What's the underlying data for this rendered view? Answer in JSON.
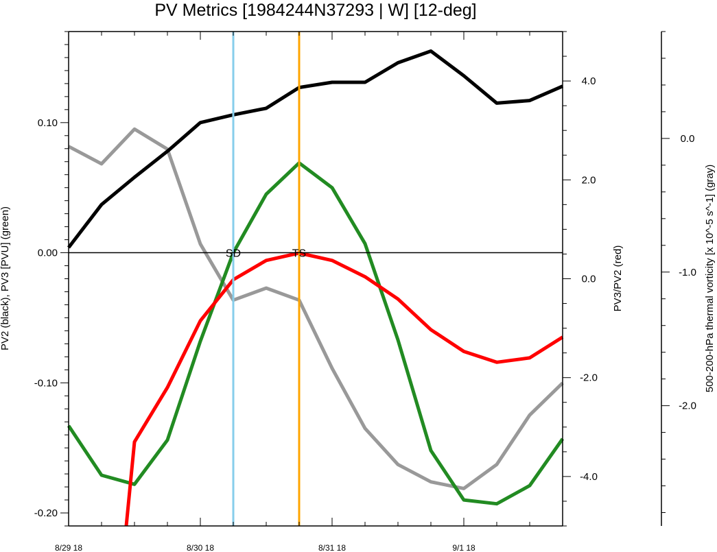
{
  "chart_data": {
    "type": "line",
    "title": "PV Metrics [1984244N37293 | W] [12-deg]",
    "x_tick_labels": [
      "8/29 18",
      "8/30 18",
      "8/31 18",
      "9/1 18"
    ],
    "x_tick_positions": [
      0,
      4,
      8,
      12
    ],
    "xlim": [
      0,
      15
    ],
    "axes": {
      "left": {
        "label": "PV2 (black), PV3 [PVU] (green)",
        "ylim": [
          -0.21,
          0.17
        ],
        "tick_values": [
          -0.2,
          -0.1,
          0.0,
          0.1
        ],
        "tick_labels": [
          "-0.20",
          "-0.10",
          "0.00",
          "0.10"
        ]
      },
      "right": {
        "label": "PV3/PV2 (red)",
        "ylim": [
          -5.0,
          5.0
        ],
        "tick_values": [
          -4.0,
          -2.0,
          0.0,
          2.0,
          4.0
        ],
        "tick_labels": [
          "-4.0",
          "-2.0",
          "0.0",
          "2.0",
          "4.0"
        ]
      },
      "far_right": {
        "label": "500-200-hPa thermal vorticity [x 10^-5 s^-1] (gray)",
        "ylim": [
          -2.9,
          0.8
        ],
        "tick_values": [
          -2.0,
          -1.0,
          0.0
        ],
        "tick_labels": [
          "-2.0",
          "-1.0",
          "0.0"
        ]
      }
    },
    "series": [
      {
        "axis": "left",
        "color": "#000000",
        "x": [
          0,
          1,
          2,
          3,
          4,
          5,
          6,
          7,
          8,
          9,
          10,
          11,
          12,
          13,
          14,
          15
        ],
        "values": [
          0.004,
          0.037,
          0.058,
          0.078,
          0.1,
          0.106,
          0.111,
          0.127,
          0.131,
          0.131,
          0.146,
          0.155,
          0.136,
          0.115,
          0.117,
          0.128
        ]
      },
      {
        "axis": "left",
        "color": "#228b22",
        "x": [
          0,
          1,
          2,
          3,
          4,
          5,
          6,
          7,
          8,
          9,
          10,
          11,
          12,
          13,
          14,
          15
        ],
        "values": [
          -0.133,
          -0.171,
          -0.178,
          -0.144,
          -0.068,
          0.0,
          0.045,
          0.069,
          0.05,
          0.007,
          -0.067,
          -0.152,
          -0.19,
          -0.193,
          -0.179,
          -0.143
        ]
      },
      {
        "axis": "right",
        "color": "#ff0000",
        "x": [
          1.75,
          2,
          3,
          4,
          5,
          6,
          7,
          8,
          9,
          10,
          11,
          12,
          13,
          14,
          15
        ],
        "values": [
          -5.0,
          -3.3,
          -2.2,
          -0.85,
          -0.02,
          0.37,
          0.52,
          0.37,
          0.04,
          -0.41,
          -1.03,
          -1.47,
          -1.69,
          -1.6,
          -1.18
        ]
      },
      {
        "axis": "far_right",
        "color": "#999999",
        "x": [
          0,
          1,
          2,
          3,
          4,
          5,
          6,
          7,
          8,
          9,
          10,
          11,
          12,
          13,
          14,
          15
        ],
        "values": [
          -0.06,
          -0.19,
          0.07,
          -0.08,
          -0.79,
          -1.21,
          -1.12,
          -1.21,
          -1.72,
          -2.17,
          -2.44,
          -2.57,
          -2.62,
          -2.44,
          -2.07,
          -1.83
        ]
      }
    ],
    "vertical_markers": [
      {
        "x": 5,
        "label": "SD",
        "color": "#87ceeb"
      },
      {
        "x": 7,
        "label": "TS",
        "color": "#ffa500"
      }
    ],
    "zero_line": true,
    "grid": false,
    "legend": "none"
  }
}
